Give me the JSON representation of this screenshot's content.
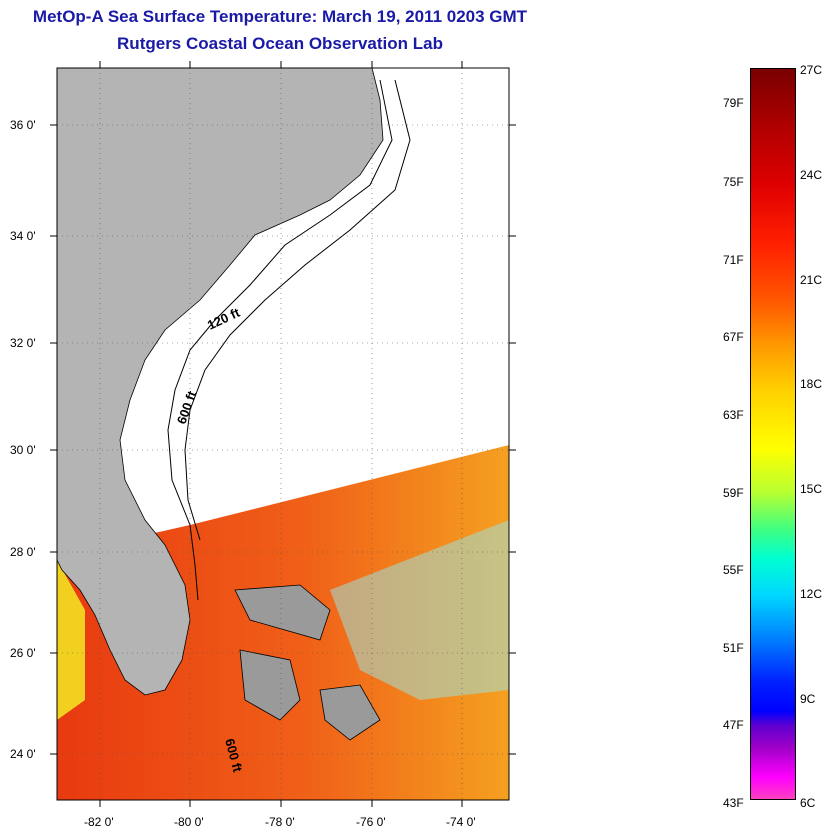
{
  "title": "MetOp-A Sea Surface Temperature:  March 19, 2011 0203 GMT",
  "subtitle": "Rutgers Coastal Ocean Observation Lab",
  "map": {
    "lat_labels": [
      "36 0'",
      "34 0'",
      "32 0'",
      "30 0'",
      "28 0'",
      "26 0'",
      "24 0'"
    ],
    "lon_labels": [
      "-82 0'",
      "-80 0'",
      "-78 0'",
      "-76 0'",
      "-74 0'"
    ],
    "contour_labels": [
      "120 ft",
      "600 ft",
      "600 ft"
    ]
  },
  "colorbar": {
    "fahrenheit_labels": [
      "79F",
      "75F",
      "71F",
      "67F",
      "63F",
      "59F",
      "55F",
      "51F",
      "47F",
      "43F"
    ],
    "celsius_labels": [
      "27C",
      "24C",
      "21C",
      "18C",
      "15C",
      "12C",
      "9C",
      "6C"
    ]
  },
  "colors": {
    "title": "#1a1aa6",
    "land": "#b4b4b4",
    "warm_water": "#e83a10"
  }
}
